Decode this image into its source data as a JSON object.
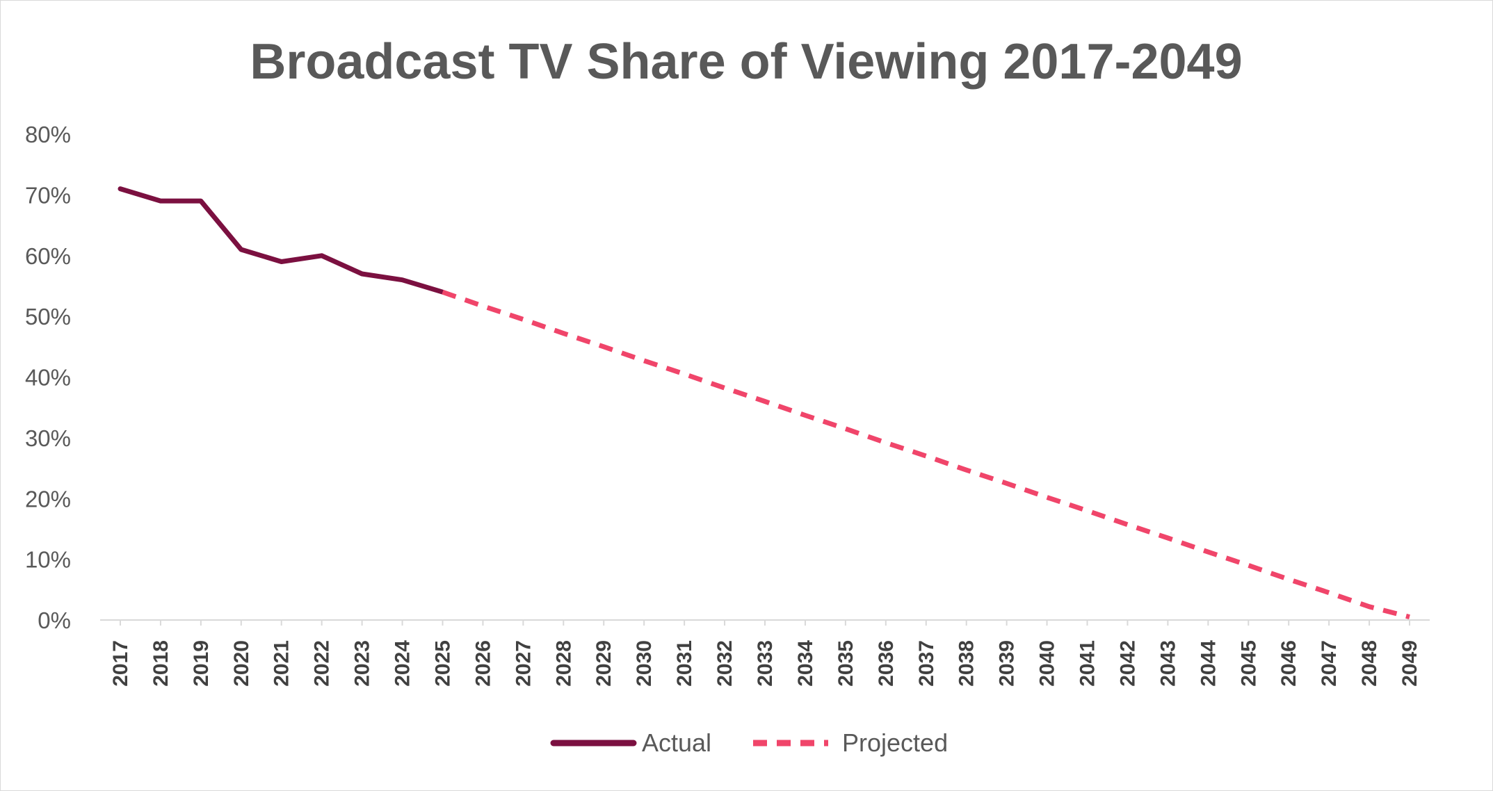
{
  "chart_data": {
    "type": "line",
    "title": "Broadcast TV Share of Viewing 2017-2049",
    "xlabel": "",
    "ylabel": "",
    "ylim": [
      0,
      0.8
    ],
    "yticks": [
      0,
      0.1,
      0.2,
      0.3,
      0.4,
      0.5,
      0.6,
      0.7,
      0.8
    ],
    "ytick_labels": [
      "0%",
      "10%",
      "20%",
      "30%",
      "40%",
      "50%",
      "60%",
      "70%",
      "80%"
    ],
    "categories": [
      "2017",
      "2018",
      "2019",
      "2020",
      "2021",
      "2022",
      "2023",
      "2024",
      "2025",
      "2026",
      "2027",
      "2028",
      "2029",
      "2030",
      "2031",
      "2032",
      "2033",
      "2034",
      "2035",
      "2036",
      "2037",
      "2038",
      "2039",
      "2040",
      "2041",
      "2042",
      "2043",
      "2044",
      "2045",
      "2046",
      "2047",
      "2048",
      "2049"
    ],
    "grid": false,
    "legend_position": "bottom-center",
    "series": [
      {
        "name": "Actual",
        "style": "solid",
        "color": "#7b1040",
        "values": [
          0.71,
          0.69,
          0.69,
          0.61,
          0.59,
          0.6,
          0.57,
          0.56,
          0.54,
          null,
          null,
          null,
          null,
          null,
          null,
          null,
          null,
          null,
          null,
          null,
          null,
          null,
          null,
          null,
          null,
          null,
          null,
          null,
          null,
          null,
          null,
          null,
          null
        ]
      },
      {
        "name": "Projected",
        "style": "dashed",
        "color": "#f0456a",
        "values": [
          null,
          null,
          null,
          null,
          null,
          null,
          null,
          null,
          0.54,
          0.517,
          0.495,
          0.472,
          0.45,
          0.427,
          0.405,
          0.382,
          0.36,
          0.337,
          0.315,
          0.292,
          0.27,
          0.247,
          0.225,
          0.202,
          0.18,
          0.157,
          0.135,
          0.112,
          0.09,
          0.067,
          0.045,
          0.022,
          0.005
        ]
      }
    ]
  }
}
